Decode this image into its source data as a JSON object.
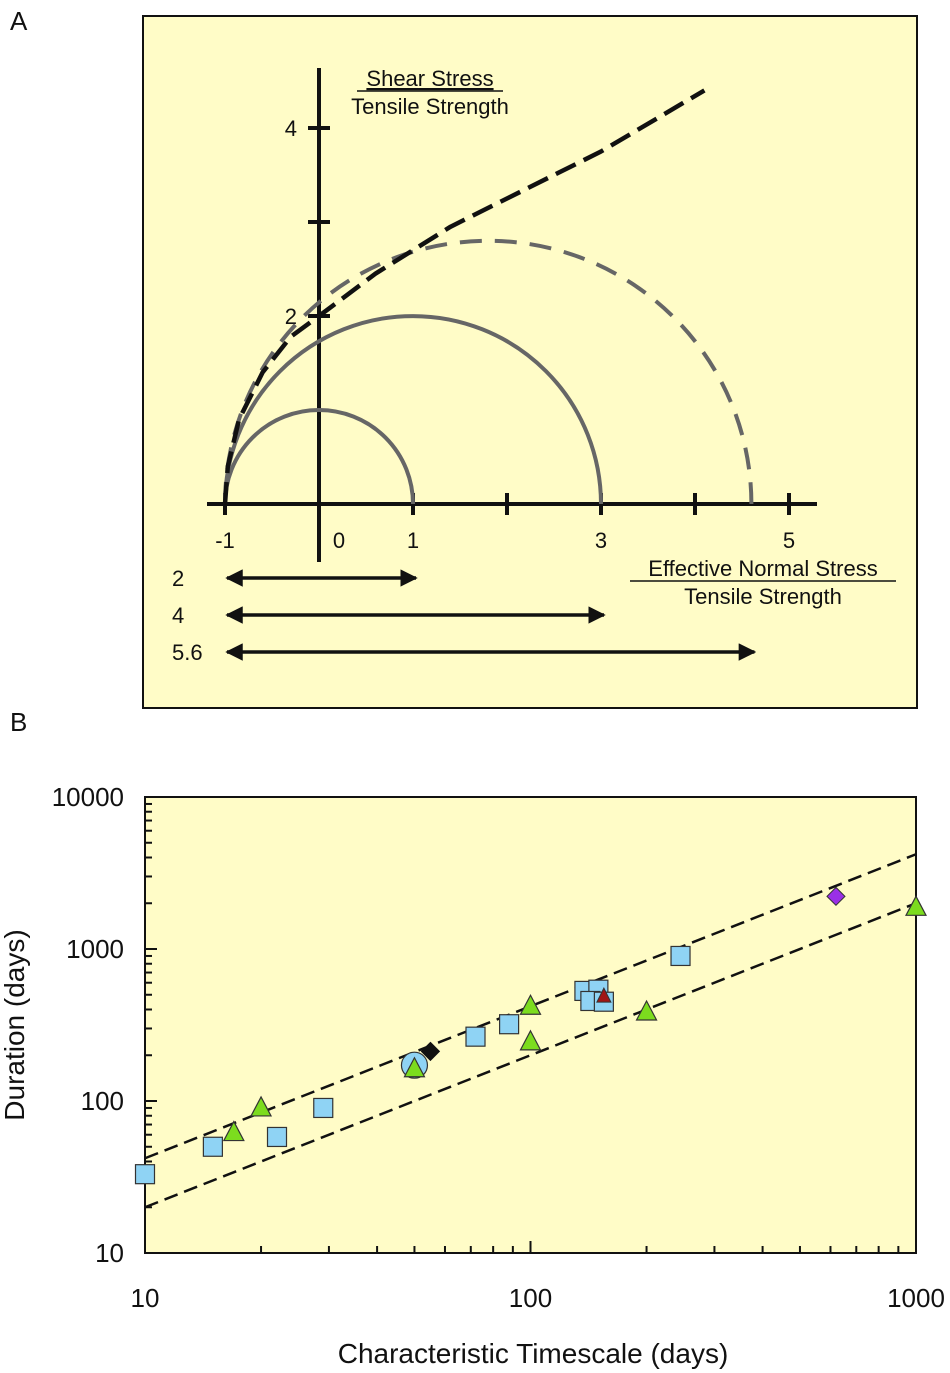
{
  "colors": {
    "panel_bg": "#fffcc7",
    "axis": "#111111",
    "circle": "#666666",
    "envelope": "#111111",
    "square": "#8fd3f4",
    "triangle": "#7cdc1e",
    "circle_marker": "#8fd3f4",
    "diamond_black": "#111111",
    "diamond_purple": "#9a2fe6",
    "triangle_red": "#a01515"
  },
  "panel_a": {
    "label": "A",
    "y_label_top": "Shear Stress",
    "y_label_bottom": "Tensile Strength",
    "x_label_top": "Effective Normal Stress",
    "x_label_bottom": "Tensile Strength",
    "chart_data": {
      "type": "diagram",
      "x_range": [
        -1.5,
        5.2
      ],
      "y_range": [
        0,
        4.6
      ],
      "x_ticks": [
        -1,
        1,
        2,
        3,
        4,
        5
      ],
      "x_tick_labels": [
        {
          "value": -1,
          "label": "-1"
        },
        {
          "value": 0,
          "label": "0"
        },
        {
          "value": 1,
          "label": "1"
        },
        {
          "value": 3,
          "label": "3"
        },
        {
          "value": 5,
          "label": "5"
        }
      ],
      "y_ticks": [
        2,
        3,
        4
      ],
      "y_tick_labels": [
        {
          "value": 2,
          "label": "2"
        },
        {
          "value": 4,
          "label": "4"
        }
      ],
      "mohr_circles": [
        {
          "center": 0,
          "radius": 1,
          "style": "solid"
        },
        {
          "center": 1,
          "radius": 2,
          "style": "solid"
        },
        {
          "center": 1.8,
          "radius": 2.8,
          "style": "dashed"
        }
      ],
      "failure_envelope": [
        [
          -1,
          0
        ],
        [
          -0.97,
          0.4
        ],
        [
          -0.85,
          0.9
        ],
        [
          -0.6,
          1.4
        ],
        [
          -0.3,
          1.78
        ],
        [
          0,
          2.0
        ],
        [
          0.6,
          2.45
        ],
        [
          1.4,
          2.95
        ],
        [
          2.0,
          3.25
        ],
        [
          3.0,
          3.75
        ],
        [
          4.1,
          4.4
        ]
      ],
      "range_arrows": [
        {
          "label": "2",
          "from": -1,
          "to": 1
        },
        {
          "label": "4",
          "from": -1,
          "to": 3
        },
        {
          "label": "5.6",
          "from": -1,
          "to": 4.6
        }
      ]
    }
  },
  "panel_b": {
    "label": "B",
    "chart_data": {
      "type": "scatter",
      "xlabel": "Characteristic Timescale  (days)",
      "ylabel": "Duration  (days)",
      "xscale": "log",
      "yscale": "log",
      "xlim": [
        10,
        1000
      ],
      "ylim": [
        10,
        10000
      ],
      "x_tick_labels": [
        "10",
        "100",
        "1000"
      ],
      "y_tick_labels": [
        "10",
        "100",
        "1000",
        "10000"
      ],
      "series": [
        {
          "marker": "square",
          "points": [
            [
              10,
              33
            ],
            [
              15,
              50
            ],
            [
              22,
              58
            ],
            [
              29,
              90
            ],
            [
              72,
              265
            ],
            [
              88,
              320
            ],
            [
              138,
              530
            ],
            [
              150,
              540
            ],
            [
              143,
              455
            ],
            [
              155,
              450
            ],
            [
              245,
              900
            ]
          ]
        },
        {
          "marker": "triangle",
          "points": [
            [
              17,
              62
            ],
            [
              20,
              90
            ],
            [
              50,
              163
            ],
            [
              100,
              420
            ],
            [
              100,
              245
            ],
            [
              200,
              385
            ],
            [
              1000,
              1880
            ]
          ]
        },
        {
          "marker": "circle",
          "points": [
            [
              50,
              172
            ]
          ]
        },
        {
          "marker": "diamond-black",
          "points": [
            [
              55,
              212
            ]
          ]
        },
        {
          "marker": "diamond-purple",
          "points": [
            [
              620,
              2220
            ]
          ]
        },
        {
          "marker": "triangle-red",
          "points": [
            [
              155,
              490
            ]
          ]
        }
      ],
      "trend_lines": [
        {
          "style": "dashed",
          "points": [
            [
              10,
              42
            ],
            [
              1000,
              4200
            ]
          ]
        },
        {
          "style": "dashed",
          "points": [
            [
              10,
              20
            ],
            [
              1000,
              2000
            ]
          ]
        }
      ]
    }
  }
}
